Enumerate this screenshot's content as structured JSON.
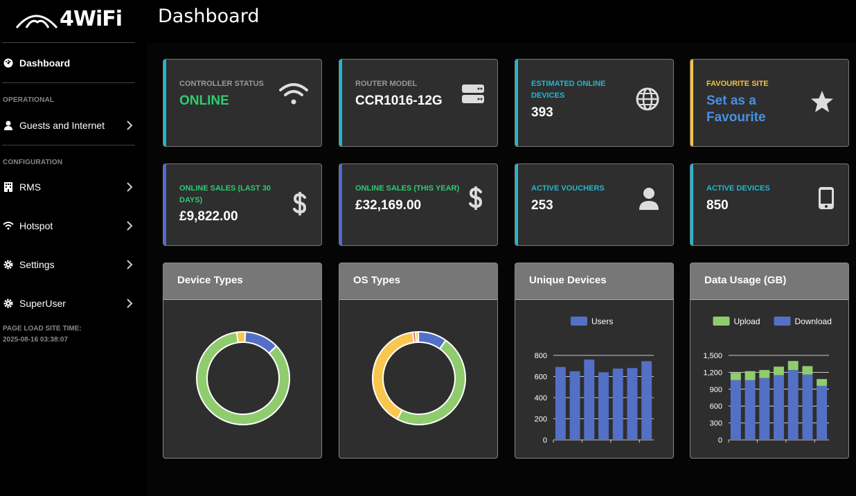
{
  "brand": {
    "name": "4WiFi"
  },
  "header": {
    "title": "Dashboard"
  },
  "sidebar": {
    "dashboard": "Dashboard",
    "section_operational": "OPERATIONAL",
    "guests": "Guests and Internet",
    "section_configuration": "CONFIGURATION",
    "rms": "RMS",
    "hotspot": "Hotspot",
    "settings": "Settings",
    "superuser": "SuperUser",
    "load_time_label": "PAGE LOAD SITE TIME:",
    "load_time_value": "2025-08-16 03:38:07"
  },
  "cards": {
    "controller": {
      "label": "CONTROLLER STATUS",
      "value": "ONLINE",
      "icon": "wifi-icon"
    },
    "router": {
      "label": "ROUTER MODEL",
      "value": "CCR1016-12G",
      "icon": "server-icon"
    },
    "online_devices": {
      "label": "ESTIMATED ONLINE DEVICES",
      "value": "393",
      "icon": "globe-icon"
    },
    "favourite": {
      "label": "FAVOURITE SITE",
      "value": "Set as a Favourite",
      "icon": "star-icon"
    },
    "sales_30": {
      "label": "ONLINE SALES (LAST 30 DAYS)",
      "value": "£9,822.00",
      "icon": "dollar-icon"
    },
    "sales_year": {
      "label": "ONLINE SALES (THIS YEAR)",
      "value": "£32,169.00",
      "icon": "dollar-icon"
    },
    "vouchers": {
      "label": "ACTIVE VOUCHERS",
      "value": "253",
      "icon": "user-icon"
    },
    "devices": {
      "label": "ACTIVE DEVICES",
      "value": "850",
      "icon": "mobile-icon"
    }
  },
  "colors": {
    "accent_teal": "#22b8cf",
    "accent_indigo": "#4e6bd3",
    "accent_yellow": "#f5c242",
    "green_text": "#2ecc71",
    "favourite_blue": "#4a90e2",
    "chart_green": "#8fcc6e",
    "chart_blue": "#5470c6",
    "chart_yellow": "#f9c74f",
    "chart_red": "#e35d5d"
  },
  "chart_data": [
    {
      "type": "pie",
      "title": "Device Types",
      "slices": [
        {
          "value": 3,
          "color": "#f9c74f"
        },
        {
          "value": 12,
          "color": "#5470c6"
        },
        {
          "value": 85,
          "color": "#8fcc6e"
        }
      ]
    },
    {
      "type": "pie",
      "title": "OS Types",
      "slices": [
        {
          "value": 1,
          "color": "#e35d5d"
        },
        {
          "value": 1,
          "color": "#f9c74f"
        },
        {
          "value": 10,
          "color": "#5470c6"
        },
        {
          "value": 48,
          "color": "#8fcc6e"
        },
        {
          "value": 40,
          "color": "#f9c74f"
        }
      ]
    },
    {
      "type": "bar",
      "title": "Unique Devices",
      "legend": "top",
      "series": [
        {
          "name": "Users",
          "color": "#5470c6",
          "values": [
            690,
            650,
            760,
            640,
            675,
            680,
            745
          ]
        }
      ],
      "yticks": [
        "800",
        "600",
        "400",
        "200",
        "0"
      ],
      "ylim": [
        0,
        800
      ]
    },
    {
      "type": "bar",
      "title": "Data Usage (GB)",
      "legend": "top",
      "stacked": true,
      "series": [
        {
          "name": "Upload",
          "color": "#8fcc6e",
          "values": [
            130,
            160,
            140,
            150,
            160,
            150,
            120
          ]
        },
        {
          "name": "Download",
          "color": "#5470c6",
          "values": [
            1060,
            1060,
            1100,
            1150,
            1240,
            1160,
            960
          ]
        }
      ],
      "yticks": [
        "1,500",
        "1,200",
        "900",
        "600",
        "300",
        "0"
      ],
      "ylim": [
        0,
        1500
      ]
    }
  ]
}
